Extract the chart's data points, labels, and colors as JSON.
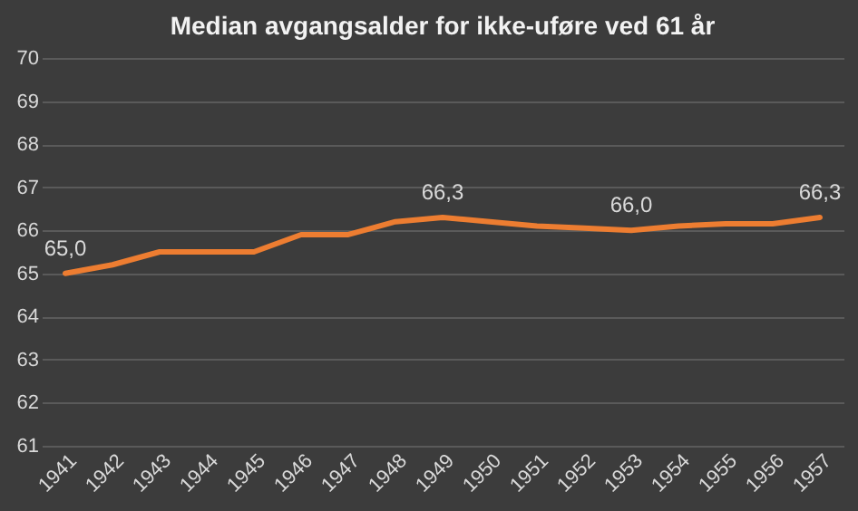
{
  "chart_data": {
    "type": "line",
    "title": "Median avgangsalder for ikke-uføre ved 61 år",
    "categories": [
      "1941",
      "1942",
      "1943",
      "1944",
      "1945",
      "1946",
      "1947",
      "1948",
      "1949",
      "1950",
      "1951",
      "1952",
      "1953",
      "1954",
      "1955",
      "1956",
      "1957"
    ],
    "series": [
      {
        "color": "#ed7d31",
        "values": [
          65.0,
          65.2,
          65.5,
          65.5,
          65.5,
          65.9,
          65.9,
          66.2,
          66.3,
          66.2,
          66.1,
          66.05,
          66.0,
          66.1,
          66.15,
          66.15,
          66.3
        ],
        "value_labels": [
          "65,0",
          null,
          null,
          null,
          null,
          null,
          null,
          null,
          "66,3",
          null,
          null,
          null,
          "66,0",
          null,
          null,
          null,
          "66,3"
        ]
      }
    ],
    "ylim": [
      61,
      70
    ],
    "yticks": [
      61,
      62,
      63,
      64,
      65,
      66,
      67,
      68,
      69,
      70
    ],
    "grid": "y",
    "marker": "none",
    "line_style": "solid"
  }
}
